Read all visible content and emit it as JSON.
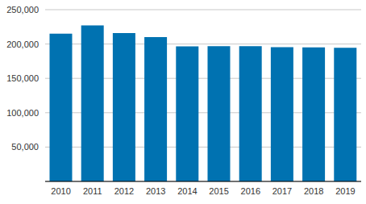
{
  "chart_data": {
    "type": "bar",
    "categories": [
      "2010",
      "2011",
      "2012",
      "2013",
      "2014",
      "2015",
      "2016",
      "2017",
      "2018",
      "2019"
    ],
    "values": [
      215000,
      227000,
      216000,
      210000,
      196500,
      197000,
      197000,
      195500,
      195000,
      194500
    ],
    "color": "#0072b1",
    "ylim": [
      0,
      250000
    ],
    "yticks": [
      {
        "value": 50000,
        "label": "50,000"
      },
      {
        "value": 100000,
        "label": "100,000"
      },
      {
        "value": 150000,
        "label": "150,000"
      },
      {
        "value": 200000,
        "label": "200,000"
      },
      {
        "value": 250000,
        "label": "250,000"
      }
    ],
    "grid": true
  }
}
